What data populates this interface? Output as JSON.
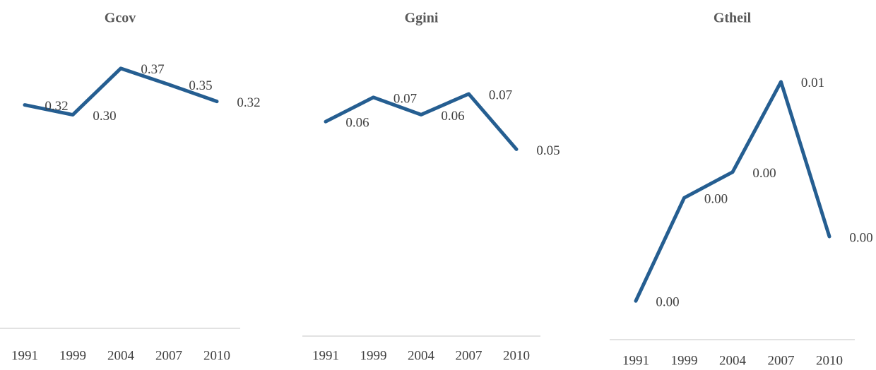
{
  "chart_data": [
    {
      "type": "line",
      "title": "Gcov",
      "categories": [
        "1991",
        "1999",
        "2004",
        "2007",
        "2010"
      ],
      "values": [
        0.318,
        0.304,
        0.37,
        0.347,
        0.323
      ],
      "value_labels": [
        "0.32",
        "0.30",
        "0.37",
        "0.35",
        "0.32"
      ],
      "color": "#255e91",
      "ylim": [
        0,
        0.4
      ]
    },
    {
      "type": "line",
      "title": "Ggini",
      "categories": [
        "1991",
        "1999",
        "2004",
        "2007",
        "2010"
      ],
      "values": [
        0.062,
        0.069,
        0.064,
        0.07,
        0.054
      ],
      "value_labels": [
        "0.06",
        "0.07",
        "0.06",
        "0.07",
        "0.05"
      ],
      "color": "#255e91",
      "ylim": [
        0,
        0.08
      ]
    },
    {
      "type": "line",
      "title": "Gtheil",
      "categories": [
        "1991",
        "1999",
        "2004",
        "2007",
        "2010"
      ],
      "values": [
        0.0009,
        0.0033,
        0.0039,
        0.006,
        0.0024
      ],
      "value_labels": [
        "0.00",
        "0.00",
        "0.00",
        "0.01",
        "0.00"
      ],
      "color": "#255e91",
      "ylim": [
        0,
        0.007
      ]
    }
  ]
}
